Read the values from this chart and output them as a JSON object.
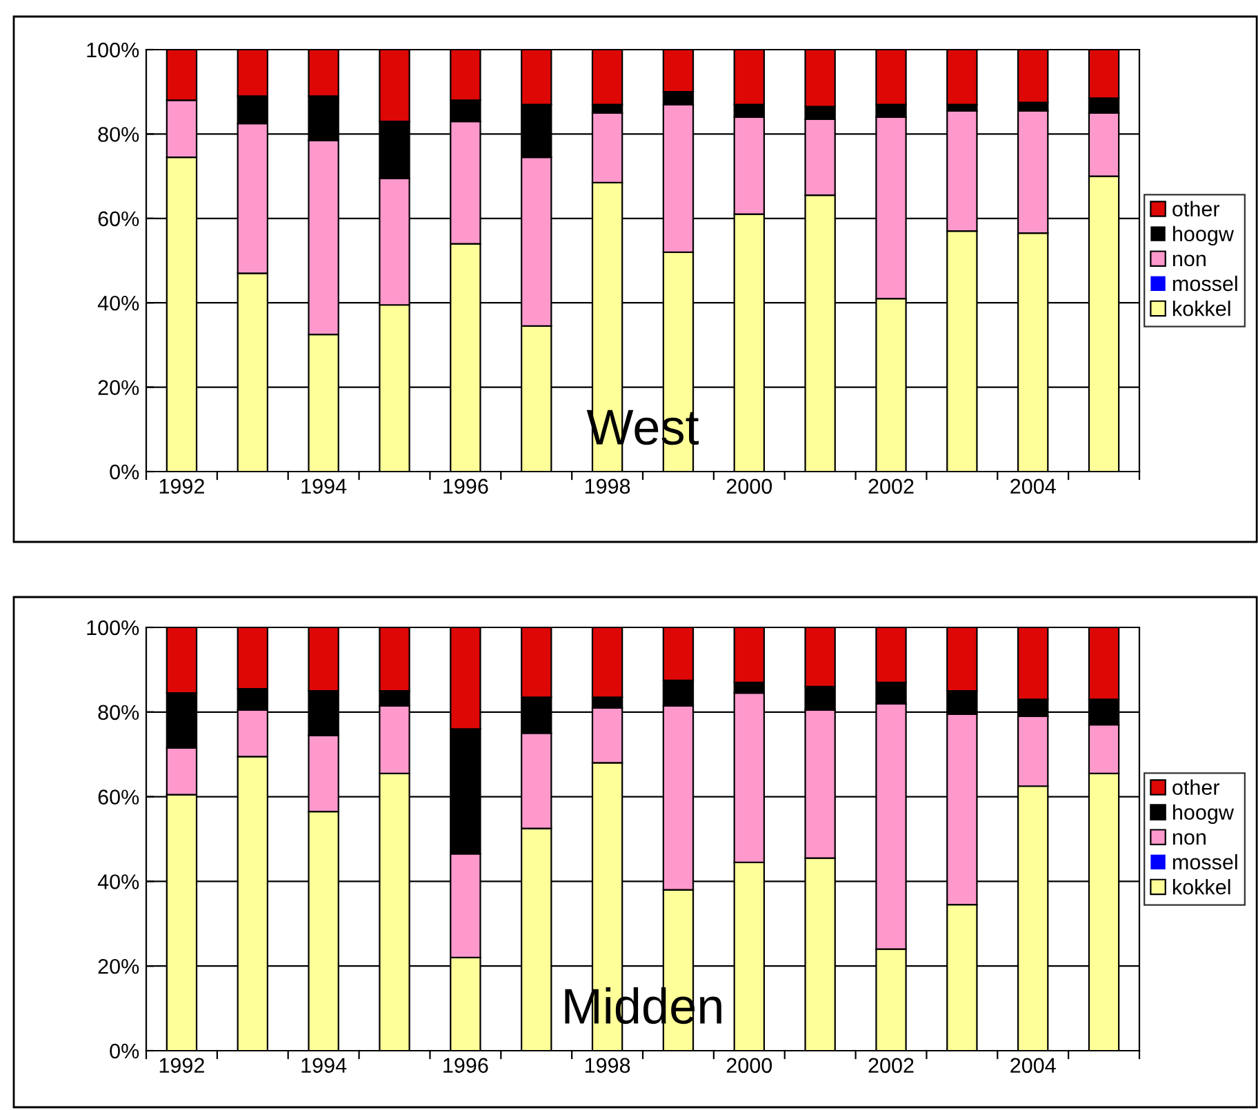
{
  "chart_data": [
    {
      "type": "bar",
      "title": "West",
      "stacked": true,
      "categories": [
        "1992",
        null,
        "1994",
        null,
        "1996",
        null,
        "1998",
        null,
        "2000",
        null,
        "2002",
        null,
        "2004",
        null
      ],
      "series": [
        {
          "name": "kokkel",
          "color": "#ffff99",
          "values": [
            74.5,
            47,
            32.5,
            39.5,
            54,
            34.5,
            68.5,
            52,
            61,
            65.5,
            41,
            57,
            56.5,
            70
          ]
        },
        {
          "name": "mossel",
          "color": "#0000ff",
          "values": [
            0,
            0,
            0,
            0,
            0,
            0,
            0,
            0,
            0,
            0,
            0,
            0,
            0,
            0
          ]
        },
        {
          "name": "non",
          "color": "#ff99cc",
          "values": [
            13.5,
            35.5,
            46,
            30,
            29,
            40,
            16.5,
            35,
            23,
            18,
            43,
            28.5,
            29,
            15
          ]
        },
        {
          "name": "hoogw",
          "color": "#000000",
          "values": [
            0,
            6.5,
            10.5,
            13.5,
            5,
            12.5,
            2,
            3,
            3,
            3,
            3,
            1.5,
            2,
            3.5
          ]
        },
        {
          "name": "other",
          "color": "#dd0806",
          "values": [
            12,
            11,
            11,
            17,
            12,
            13,
            13,
            10,
            13,
            13.5,
            13,
            13,
            12.5,
            11.5
          ]
        }
      ],
      "ylim": [
        0,
        100
      ],
      "yticks": [
        {
          "value": 0,
          "label": "0%"
        },
        {
          "value": 20,
          "label": "20%"
        },
        {
          "value": 40,
          "label": "40%"
        },
        {
          "value": 60,
          "label": "60%"
        },
        {
          "value": 80,
          "label": "80%"
        },
        {
          "value": 100,
          "label": "100%"
        }
      ],
      "grid": "y",
      "legend": "right"
    },
    {
      "type": "bar",
      "title": "Midden",
      "stacked": true,
      "categories": [
        "1992",
        null,
        "1994",
        null,
        "1996",
        null,
        "1998",
        null,
        "2000",
        null,
        "2002",
        null,
        "2004",
        null
      ],
      "series": [
        {
          "name": "kokkel",
          "color": "#ffff99",
          "values": [
            60.5,
            69.5,
            56.5,
            65.5,
            22,
            52.5,
            68,
            38,
            44.5,
            45.5,
            24,
            34.5,
            62.5,
            65.5
          ]
        },
        {
          "name": "mossel",
          "color": "#0000ff",
          "values": [
            0,
            0,
            0,
            0,
            0,
            0,
            0,
            0,
            0,
            0,
            0,
            0,
            0,
            0
          ]
        },
        {
          "name": "non",
          "color": "#ff99cc",
          "values": [
            11,
            11,
            18,
            16,
            24.5,
            22.5,
            13,
            43.5,
            40,
            35,
            58,
            45,
            16.5,
            11.5
          ]
        },
        {
          "name": "hoogw",
          "color": "#000000",
          "values": [
            13,
            5,
            10.5,
            3.5,
            29.5,
            8.5,
            2.5,
            6,
            2.5,
            5.5,
            5,
            5.5,
            4,
            6
          ]
        },
        {
          "name": "other",
          "color": "#dd0806",
          "values": [
            15.5,
            14.5,
            15,
            15,
            24,
            16.5,
            16.5,
            12.5,
            13,
            14,
            13,
            15,
            17,
            17
          ]
        }
      ],
      "ylim": [
        0,
        100
      ],
      "yticks": [
        {
          "value": 0,
          "label": "0%"
        },
        {
          "value": 20,
          "label": "20%"
        },
        {
          "value": 40,
          "label": "40%"
        },
        {
          "value": 60,
          "label": "60%"
        },
        {
          "value": 80,
          "label": "80%"
        },
        {
          "value": 100,
          "label": "100%"
        }
      ],
      "grid": "y",
      "legend": "right"
    }
  ]
}
